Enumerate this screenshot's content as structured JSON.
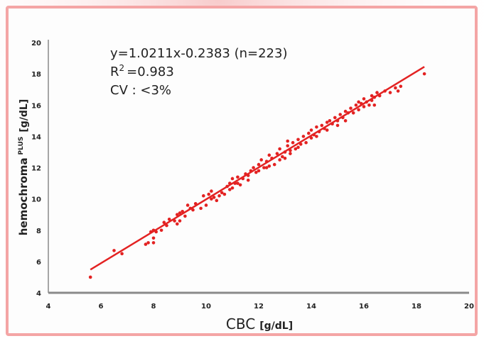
{
  "colors": {
    "frame": "#f4a5a5",
    "series": "#e32222",
    "axis": "#8a8a8a",
    "glow": "#f7c6c6"
  },
  "annotations": {
    "equation": "y=1.0211x-0.2383 (n=223)",
    "r2_prefix": "R",
    "r2_sup": "2",
    "r2_value": "=0.983",
    "cv": "CV : <3%"
  },
  "axes": {
    "x": {
      "label": "CBC",
      "unit": "[g/dL]"
    },
    "y": {
      "label": "hemochroma",
      "label_sup": "PLUS",
      "unit": "[g/dL]"
    }
  },
  "chart_data": {
    "type": "scatter",
    "xlim": [
      4,
      20
    ],
    "ylim": [
      4,
      20
    ],
    "xticks": [
      4,
      6,
      8,
      10,
      12,
      14,
      16,
      18,
      20
    ],
    "yticks": [
      4,
      6,
      8,
      10,
      12,
      14,
      16,
      18,
      20
    ],
    "grid": false,
    "series": [
      {
        "values": [
          [
            5.6,
            5.0
          ],
          [
            6.5,
            6.7
          ],
          [
            6.8,
            6.5
          ],
          [
            7.7,
            7.1
          ],
          [
            7.8,
            7.2
          ],
          [
            8.0,
            7.2
          ],
          [
            8.0,
            7.5
          ],
          [
            8.0,
            8.0
          ],
          [
            8.1,
            7.9
          ],
          [
            8.3,
            8.0
          ],
          [
            8.5,
            8.3
          ],
          [
            8.6,
            8.7
          ],
          [
            8.8,
            8.6
          ],
          [
            8.9,
            8.4
          ],
          [
            8.9,
            9.0
          ],
          [
            9.0,
            9.1
          ],
          [
            9.0,
            8.6
          ],
          [
            9.1,
            9.2
          ],
          [
            9.2,
            8.9
          ],
          [
            9.3,
            9.6
          ],
          [
            9.5,
            9.3
          ],
          [
            9.6,
            9.7
          ],
          [
            9.8,
            9.4
          ],
          [
            9.9,
            10.2
          ],
          [
            10.0,
            9.6
          ],
          [
            10.1,
            10.3
          ],
          [
            10.2,
            10.0
          ],
          [
            10.2,
            10.5
          ],
          [
            10.4,
            9.9
          ],
          [
            10.5,
            10.2
          ],
          [
            10.6,
            10.4
          ],
          [
            10.7,
            10.3
          ],
          [
            10.8,
            10.8
          ],
          [
            10.9,
            10.6
          ],
          [
            10.9,
            11.0
          ],
          [
            11.0,
            11.3
          ],
          [
            11.0,
            10.7
          ],
          [
            11.1,
            11.0
          ],
          [
            11.2,
            11.4
          ],
          [
            11.3,
            10.9
          ],
          [
            11.4,
            11.3
          ],
          [
            11.5,
            11.6
          ],
          [
            11.6,
            11.5
          ],
          [
            11.6,
            11.2
          ],
          [
            11.7,
            11.8
          ],
          [
            11.8,
            12.0
          ],
          [
            11.9,
            11.7
          ],
          [
            12.0,
            12.2
          ],
          [
            12.0,
            11.8
          ],
          [
            12.1,
            12.5
          ],
          [
            12.2,
            12.0
          ],
          [
            12.3,
            12.4
          ],
          [
            12.4,
            12.1
          ],
          [
            12.4,
            12.8
          ],
          [
            12.5,
            12.6
          ],
          [
            12.6,
            12.2
          ],
          [
            12.7,
            12.9
          ],
          [
            12.8,
            12.5
          ],
          [
            12.8,
            13.2
          ],
          [
            12.9,
            12.7
          ],
          [
            13.0,
            13.0
          ],
          [
            13.0,
            12.6
          ],
          [
            13.1,
            13.4
          ],
          [
            13.2,
            13.1
          ],
          [
            13.2,
            12.9
          ],
          [
            13.3,
            13.6
          ],
          [
            13.4,
            13.2
          ],
          [
            13.5,
            13.8
          ],
          [
            13.5,
            13.3
          ],
          [
            13.6,
            13.5
          ],
          [
            13.7,
            14.0
          ],
          [
            13.8,
            13.6
          ],
          [
            13.9,
            14.2
          ],
          [
            14.0,
            13.9
          ],
          [
            14.0,
            14.4
          ],
          [
            14.1,
            14.1
          ],
          [
            14.2,
            14.6
          ],
          [
            14.3,
            14.3
          ],
          [
            14.4,
            14.7
          ],
          [
            14.5,
            14.5
          ],
          [
            14.6,
            14.9
          ],
          [
            14.6,
            14.4
          ],
          [
            14.7,
            15.0
          ],
          [
            14.8,
            14.8
          ],
          [
            14.9,
            15.2
          ],
          [
            15.0,
            15.0
          ],
          [
            15.0,
            14.7
          ],
          [
            15.1,
            15.4
          ],
          [
            15.2,
            15.2
          ],
          [
            15.3,
            15.6
          ],
          [
            15.3,
            15.0
          ],
          [
            15.4,
            15.5
          ],
          [
            15.5,
            15.8
          ],
          [
            15.6,
            15.5
          ],
          [
            15.7,
            16.0
          ],
          [
            15.8,
            15.7
          ],
          [
            15.9,
            16.1
          ],
          [
            16.0,
            15.9
          ],
          [
            16.0,
            16.4
          ],
          [
            16.1,
            16.2
          ],
          [
            16.2,
            16.0
          ],
          [
            16.3,
            16.6
          ],
          [
            16.3,
            16.3
          ],
          [
            16.4,
            16.5
          ],
          [
            16.5,
            16.8
          ],
          [
            16.6,
            16.6
          ],
          [
            16.8,
            16.9
          ],
          [
            17.0,
            16.8
          ],
          [
            17.2,
            17.1
          ],
          [
            17.3,
            16.9
          ],
          [
            17.4,
            17.2
          ],
          [
            18.3,
            18.0
          ],
          [
            16.4,
            16.0
          ],
          [
            15.8,
            16.2
          ],
          [
            14.2,
            14.0
          ],
          [
            13.1,
            13.7
          ],
          [
            12.3,
            12.0
          ],
          [
            11.2,
            11.0
          ],
          [
            10.3,
            10.1
          ],
          [
            9.4,
            9.4
          ],
          [
            8.4,
            8.5
          ],
          [
            7.9,
            7.9
          ]
        ]
      }
    ],
    "trendline": {
      "slope": 1.0211,
      "intercept": -0.2383,
      "x_range": [
        5.6,
        18.3
      ]
    }
  }
}
